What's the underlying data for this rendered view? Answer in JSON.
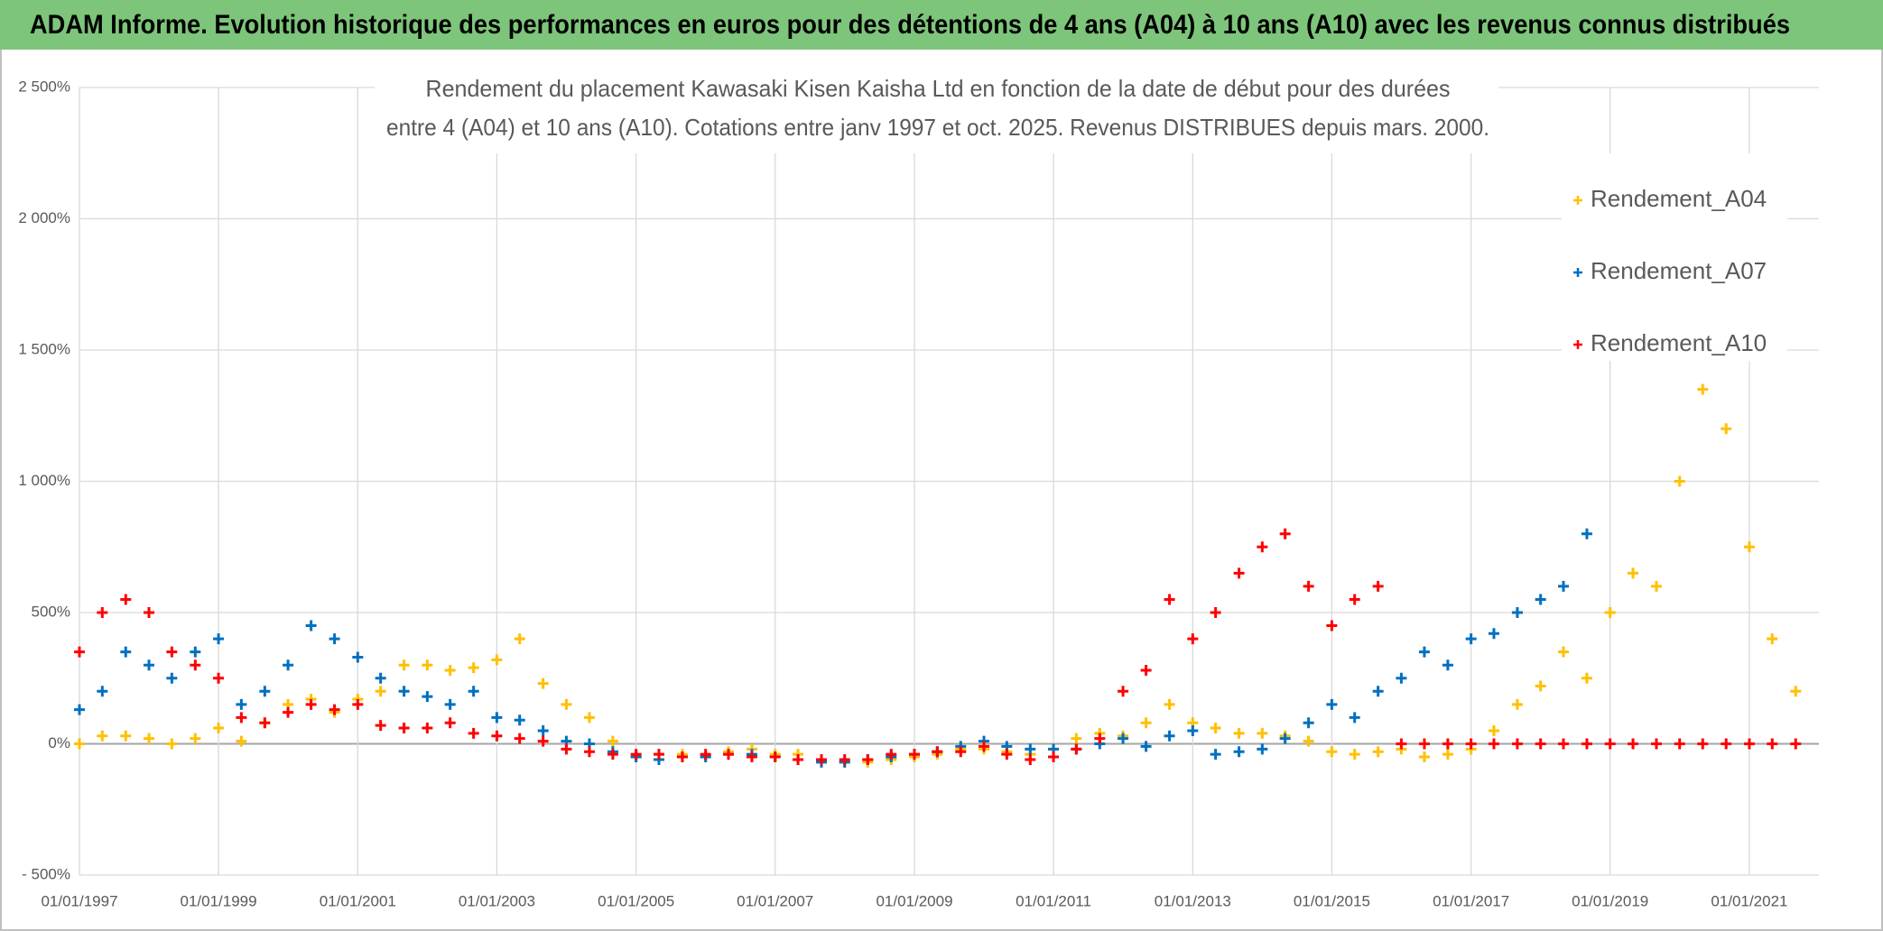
{
  "header": {
    "title": "ADAM Informe. Evolution historique des performances en euros pour des détentions de 4 ans (A04) à 10 ans (A10) avec les revenus connus distribués"
  },
  "chart_data": {
    "type": "scatter",
    "title": [
      "Rendement du placement Kawasaki Kisen Kaisha Ltd en fonction de la date de début pour des durées",
      "entre 4 (A04) et 10 ans (A10). Cotations entre janv 1997 et oct. 2025. Revenus DISTRIBUES depuis mars. 2000."
    ],
    "x": [
      "01/01/1997",
      "01/05/1997",
      "01/09/1997",
      "01/01/1998",
      "01/05/1998",
      "01/09/1998",
      "01/01/1999",
      "01/05/1999",
      "01/09/1999",
      "01/01/2000",
      "01/05/2000",
      "01/09/2000",
      "01/01/2001",
      "01/05/2001",
      "01/09/2001",
      "01/01/2002",
      "01/05/2002",
      "01/09/2002",
      "01/01/2003",
      "01/05/2003",
      "01/09/2003",
      "01/01/2004",
      "01/05/2004",
      "01/09/2004",
      "01/01/2005",
      "01/05/2005",
      "01/09/2005",
      "01/01/2006",
      "01/05/2006",
      "01/09/2006",
      "01/01/2007",
      "01/05/2007",
      "01/09/2007",
      "01/01/2008",
      "01/05/2008",
      "01/09/2008",
      "01/01/2009",
      "01/05/2009",
      "01/09/2009",
      "01/01/2010",
      "01/05/2010",
      "01/09/2010",
      "01/01/2011",
      "01/05/2011",
      "01/09/2011",
      "01/01/2012",
      "01/05/2012",
      "01/09/2012",
      "01/01/2013",
      "01/05/2013",
      "01/09/2013",
      "01/01/2014",
      "01/05/2014",
      "01/09/2014",
      "01/01/2015",
      "01/05/2015",
      "01/09/2015",
      "01/01/2016",
      "01/05/2016",
      "01/09/2016",
      "01/01/2017",
      "01/05/2017",
      "01/09/2017",
      "01/01/2018",
      "01/05/2018",
      "01/09/2018",
      "01/01/2019",
      "01/05/2019",
      "01/09/2019",
      "01/01/2020",
      "01/05/2020",
      "01/09/2020",
      "01/01/2021",
      "01/05/2021",
      "01/09/2021"
    ],
    "series": [
      {
        "name": "Rendement_A04",
        "color": "#ffc000",
        "values": [
          0,
          30,
          30,
          20,
          0,
          20,
          60,
          10,
          80,
          150,
          170,
          120,
          170,
          200,
          300,
          300,
          280,
          290,
          320,
          400,
          230,
          150,
          100,
          10,
          -50,
          -40,
          -40,
          -50,
          -30,
          -20,
          -40,
          -40,
          -60,
          -70,
          -70,
          -60,
          -50,
          -40,
          -20,
          -20,
          -30,
          -40,
          -20,
          20,
          40,
          30,
          80,
          150,
          80,
          60,
          40,
          40,
          30,
          10,
          -30,
          -40,
          -30,
          -20,
          -50,
          -40,
          -20,
          50,
          150,
          220,
          350,
          250,
          500,
          650,
          600,
          1000,
          1350,
          1200,
          750,
          400,
          200
        ]
      },
      {
        "name": "Rendement_A07",
        "color": "#0070c0",
        "values": [
          130,
          200,
          350,
          300,
          250,
          350,
          400,
          150,
          200,
          300,
          450,
          400,
          330,
          250,
          200,
          180,
          150,
          200,
          100,
          90,
          50,
          10,
          0,
          -30,
          -50,
          -60,
          -50,
          -50,
          -40,
          -40,
          -50,
          -60,
          -70,
          -70,
          -60,
          -50,
          -40,
          -30,
          -10,
          10,
          -10,
          -20,
          -20,
          -20,
          0,
          20,
          -10,
          30,
          50,
          -40,
          -30,
          -20,
          20,
          80,
          150,
          100,
          200,
          250,
          350,
          300,
          400,
          420,
          500,
          550,
          600,
          800,
          null,
          null,
          null,
          null,
          null,
          null,
          null,
          null,
          null
        ]
      },
      {
        "name": "Rendement_A10",
        "color": "#ff0000",
        "values": [
          350,
          500,
          550,
          500,
          350,
          300,
          250,
          100,
          80,
          120,
          150,
          130,
          150,
          70,
          60,
          60,
          80,
          40,
          30,
          20,
          10,
          -20,
          -30,
          -40,
          -40,
          -40,
          -50,
          -40,
          -40,
          -50,
          -50,
          -60,
          -60,
          -60,
          -60,
          -40,
          -40,
          -30,
          -30,
          -10,
          -40,
          -60,
          -50,
          -20,
          20,
          200,
          280,
          550,
          400,
          500,
          650,
          750,
          800,
          600,
          450,
          550,
          600,
          0,
          0,
          0,
          0,
          0,
          0,
          0,
          0,
          0,
          0,
          0,
          0,
          0,
          0,
          0,
          0,
          0,
          0
        ]
      }
    ],
    "xlim": [
      "01/01/1997",
      "01/01/2022"
    ],
    "xticks": [
      "01/01/1997",
      "01/01/1999",
      "01/01/2001",
      "01/01/2003",
      "01/01/2005",
      "01/01/2007",
      "01/01/2009",
      "01/01/2011",
      "01/01/2013",
      "01/01/2015",
      "01/01/2017",
      "01/01/2019",
      "01/01/2021"
    ],
    "ylim": [
      -500,
      2500
    ],
    "yticks": [
      {
        "value": -500,
        "label": "- 500%"
      },
      {
        "value": 0,
        "label": "0%"
      },
      {
        "value": 500,
        "label": "500%"
      },
      {
        "value": 1000,
        "label": "1 000%"
      },
      {
        "value": 1500,
        "label": "1 500%"
      },
      {
        "value": 2000,
        "label": "2 000%"
      },
      {
        "value": 2500,
        "label": "2 500%"
      }
    ],
    "grid": true,
    "legend": "right"
  }
}
